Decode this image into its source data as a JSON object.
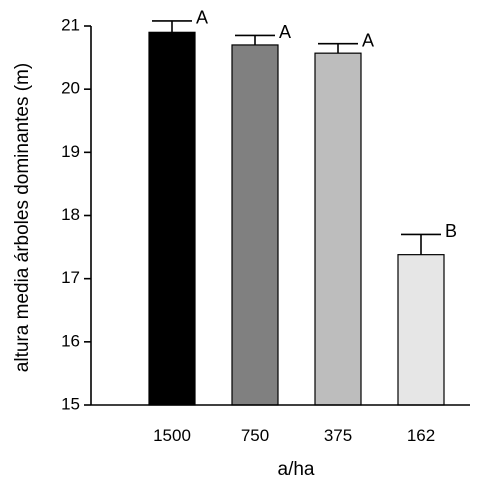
{
  "chart_data": {
    "type": "bar",
    "categories": [
      "1500",
      "750",
      "375",
      "162"
    ],
    "values": [
      20.9,
      20.7,
      20.57,
      17.38
    ],
    "errors": [
      0.18,
      0.15,
      0.15,
      0.32
    ],
    "significance": [
      "A",
      "A",
      "A",
      "B"
    ],
    "bar_colors": [
      "#000000",
      "#808080",
      "#bdbdbd",
      "#e6e6e6"
    ],
    "xlabel": "a/ha",
    "ylabel": "altura media árboles dominantes (m)",
    "ylim": [
      15,
      21
    ],
    "yticks": [
      15,
      16,
      17,
      18,
      19,
      20,
      21
    ],
    "grid": false
  }
}
